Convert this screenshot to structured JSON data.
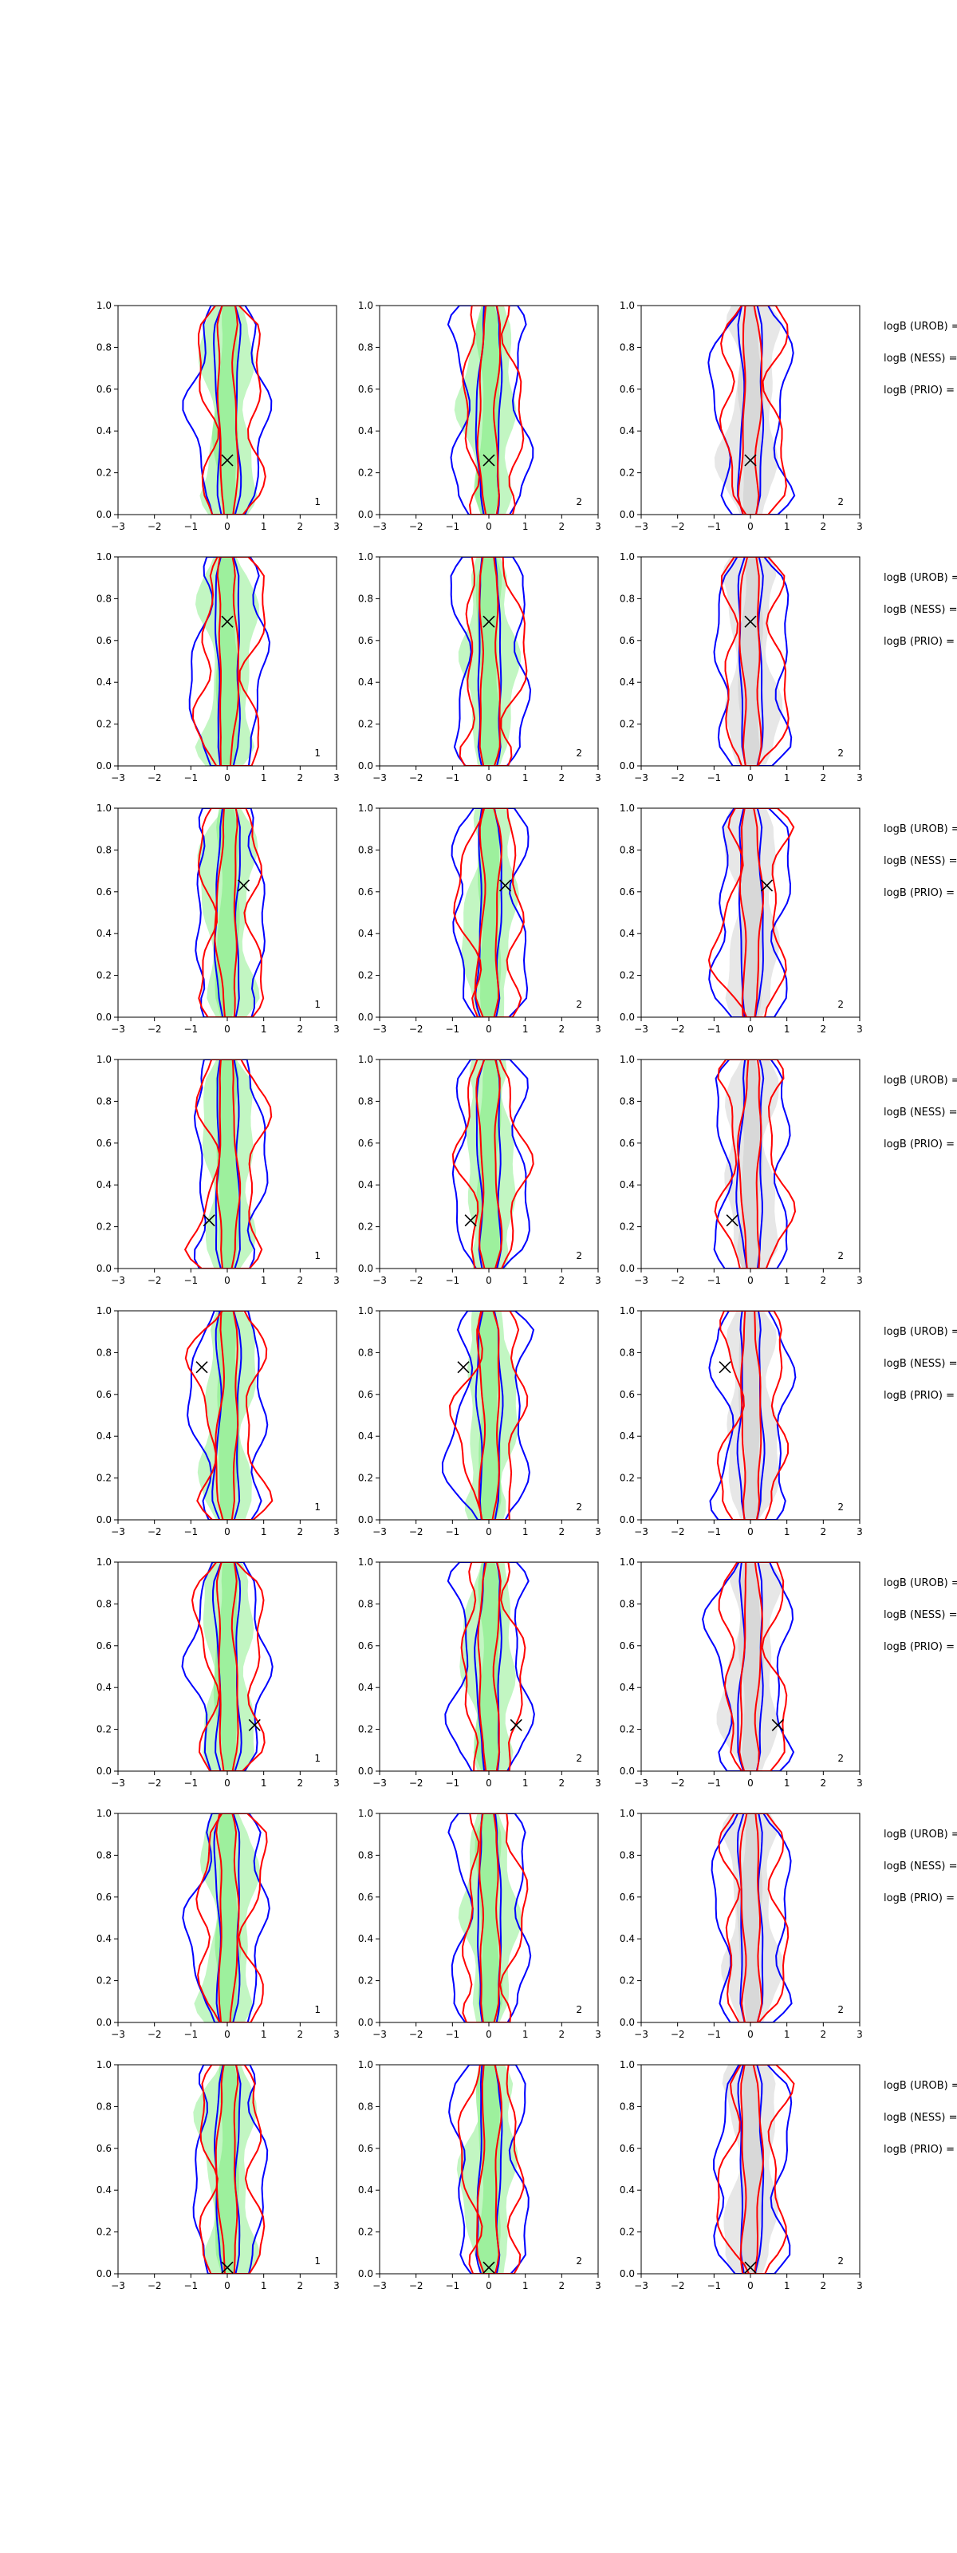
{
  "colors": {
    "background": "#ffffff",
    "fill_green": "#90ee90",
    "fill_gray": "#d3d3d3",
    "line_red": "#ff0000",
    "line_blue": "#0000ff",
    "axis": "#000000"
  },
  "chart_data": {
    "type": "contour-grid",
    "layout": {
      "rows": 8,
      "cols": 3
    },
    "xlim": [
      -3,
      3
    ],
    "ylim": [
      0,
      1
    ],
    "xticks": [
      "−3",
      "−2",
      "−1",
      "0",
      "1",
      "2",
      "3"
    ],
    "yticks": [
      "0.0",
      "0.2",
      "0.4",
      "0.6",
      "0.8",
      "1.0"
    ],
    "col_labels": [
      "1",
      "2",
      "2"
    ],
    "legend_lines": [
      "logB (UROB) =",
      "logB (NESS) =",
      "logB (PRIO) ="
    ],
    "rows": [
      {
        "marker": {
          "x": 0.0,
          "y": 0.26
        }
      },
      {
        "marker": {
          "x": 0.0,
          "y": 0.69
        }
      },
      {
        "marker": {
          "x": 0.45,
          "y": 0.63
        }
      },
      {
        "marker": {
          "x": -0.5,
          "y": 0.23
        }
      },
      {
        "marker": {
          "x": -0.7,
          "y": 0.73
        }
      },
      {
        "marker": {
          "x": 0.75,
          "y": 0.22
        }
      },
      {
        "marker": null
      },
      {
        "marker": {
          "x": 0.0,
          "y": 0.03
        }
      }
    ]
  }
}
